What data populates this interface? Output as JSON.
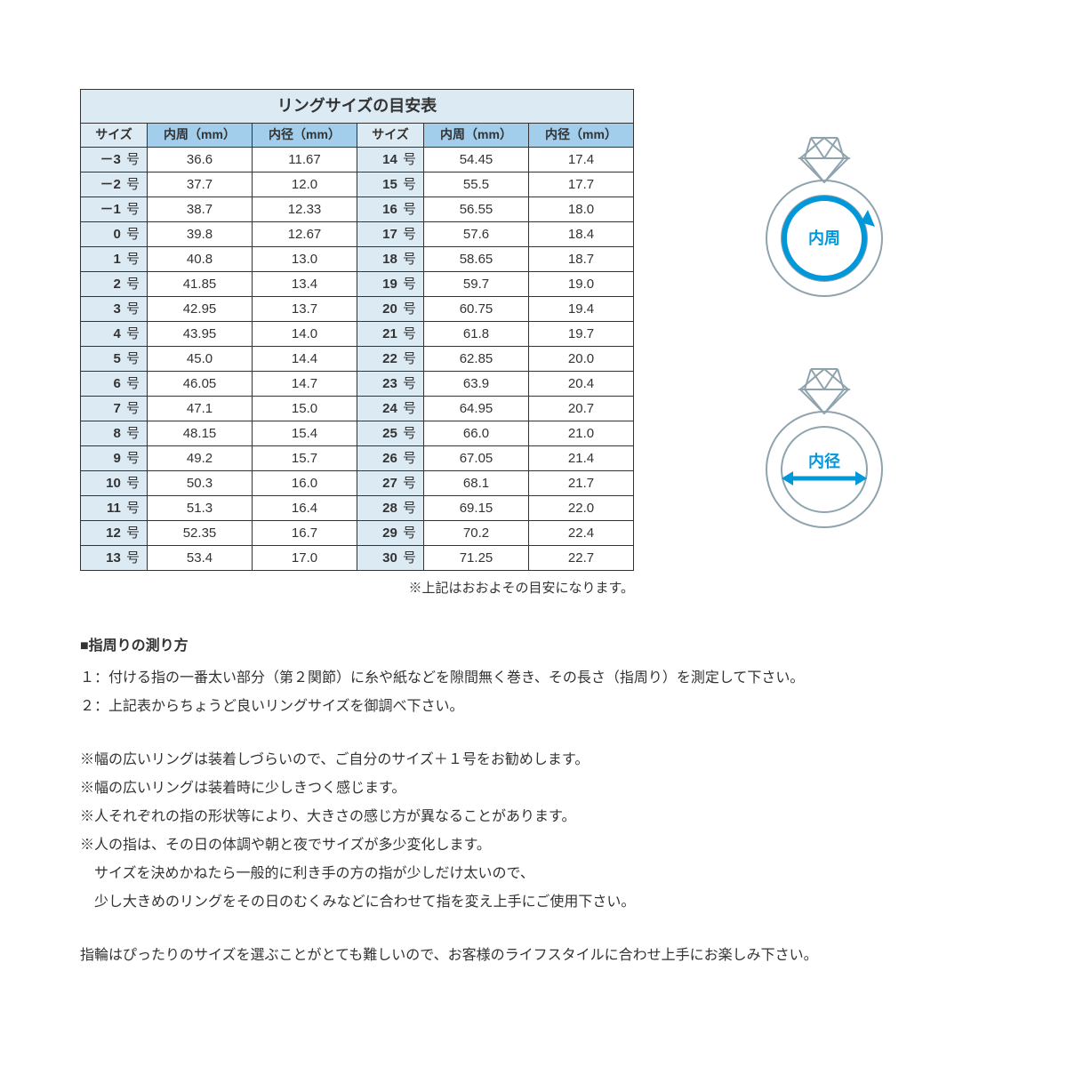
{
  "table": {
    "title": "リングサイズの目安表",
    "headers": {
      "size": "サイズ",
      "circumference": "内周（mm）",
      "diameter": "内径（mm）"
    },
    "size_suffix": "号",
    "rows_left": [
      {
        "size": "－3",
        "circ": "36.6",
        "diam": "11.67"
      },
      {
        "size": "－2",
        "circ": "37.7",
        "diam": "12.0"
      },
      {
        "size": "－1",
        "circ": "38.7",
        "diam": "12.33"
      },
      {
        "size": "0",
        "circ": "39.8",
        "diam": "12.67"
      },
      {
        "size": "1",
        "circ": "40.8",
        "diam": "13.0"
      },
      {
        "size": "2",
        "circ": "41.85",
        "diam": "13.4"
      },
      {
        "size": "3",
        "circ": "42.95",
        "diam": "13.7"
      },
      {
        "size": "4",
        "circ": "43.95",
        "diam": "14.0"
      },
      {
        "size": "5",
        "circ": "45.0",
        "diam": "14.4"
      },
      {
        "size": "6",
        "circ": "46.05",
        "diam": "14.7"
      },
      {
        "size": "7",
        "circ": "47.1",
        "diam": "15.0"
      },
      {
        "size": "8",
        "circ": "48.15",
        "diam": "15.4"
      },
      {
        "size": "9",
        "circ": "49.2",
        "diam": "15.7"
      },
      {
        "size": "10",
        "circ": "50.3",
        "diam": "16.0"
      },
      {
        "size": "11",
        "circ": "51.3",
        "diam": "16.4"
      },
      {
        "size": "12",
        "circ": "52.35",
        "diam": "16.7"
      },
      {
        "size": "13",
        "circ": "53.4",
        "diam": "17.0"
      }
    ],
    "rows_right": [
      {
        "size": "14",
        "circ": "54.45",
        "diam": "17.4"
      },
      {
        "size": "15",
        "circ": "55.5",
        "diam": "17.7"
      },
      {
        "size": "16",
        "circ": "56.55",
        "diam": "18.0"
      },
      {
        "size": "17",
        "circ": "57.6",
        "diam": "18.4"
      },
      {
        "size": "18",
        "circ": "58.65",
        "diam": "18.7"
      },
      {
        "size": "19",
        "circ": "59.7",
        "diam": "19.0"
      },
      {
        "size": "20",
        "circ": "60.75",
        "diam": "19.4"
      },
      {
        "size": "21",
        "circ": "61.8",
        "diam": "19.7"
      },
      {
        "size": "22",
        "circ": "62.85",
        "diam": "20.0"
      },
      {
        "size": "23",
        "circ": "63.9",
        "diam": "20.4"
      },
      {
        "size": "24",
        "circ": "64.95",
        "diam": "20.7"
      },
      {
        "size": "25",
        "circ": "66.0",
        "diam": "21.0"
      },
      {
        "size": "26",
        "circ": "67.05",
        "diam": "21.4"
      },
      {
        "size": "27",
        "circ": "68.1",
        "diam": "21.7"
      },
      {
        "size": "28",
        "circ": "69.15",
        "diam": "22.0"
      },
      {
        "size": "29",
        "circ": "70.2",
        "diam": "22.4"
      },
      {
        "size": "30",
        "circ": "71.25",
        "diam": "22.7"
      }
    ],
    "note": "※上記はおおよその目安になります。"
  },
  "diagrams": {
    "circumference_label": "内周",
    "diameter_label": "内径",
    "ring_stroke": "#8fa3ad",
    "arrow_color": "#0098db",
    "label_color": "#0098db"
  },
  "instructions": {
    "heading": "■指周りの測り方",
    "step1": "１：付ける指の一番太い部分（第２関節）に糸や紙などを隙間無く巻き、その長さ（指周り）を測定して下さい。",
    "step2": "２：上記表からちょうど良いリングサイズを御調べ下さい。",
    "note1": "※幅の広いリングは装着しづらいので、ご自分のサイズ＋１号をお勧めします。",
    "note2": "※幅の広いリングは装着時に少しきつく感じます。",
    "note3": "※人それぞれの指の形状等により、大きさの感じ方が異なることがあります。",
    "note4": "※人の指は、その日の体調や朝と夜でサイズが多少変化します。",
    "note5": "　サイズを決めかねたら一般的に利き手の方の指が少しだけ太いので、",
    "note6": "　少し大きめのリングをその日のむくみなどに合わせて指を変え上手にご使用下さい。",
    "final": "指輪はぴったりのサイズを選ぶことがとても難しいので、お客様のライフスタイルに合わせ上手にお楽しみ下さい。"
  },
  "styling": {
    "title_bg": "#dceaf3",
    "header_bg": "#a2cdeb",
    "size_cell_bg": "#dceaf3",
    "border_color": "#333333",
    "text_color": "#333333",
    "background": "#ffffff"
  }
}
